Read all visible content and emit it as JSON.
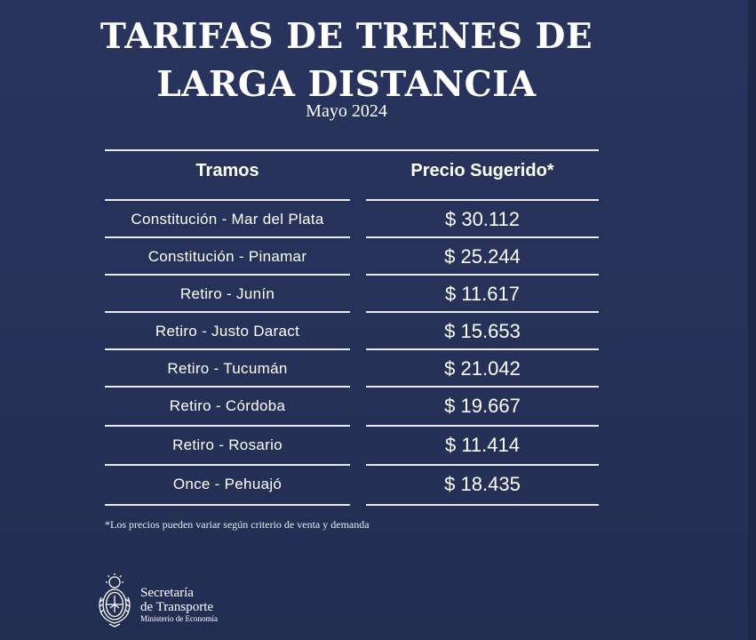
{
  "header": {
    "title_line1": "TARIFAS DE TRENES DE",
    "title_line2": "LARGA DISTANCIA",
    "subtitle": "Mayo 2024"
  },
  "table": {
    "columns": [
      "Tramos",
      "Precio Sugerido*"
    ],
    "rows": [
      {
        "route": "Constitución - Mar del Plata",
        "price": "$ 30.112"
      },
      {
        "route": "Constitución - Pinamar",
        "price": "$ 25.244"
      },
      {
        "route": "Retiro - Junín",
        "price": "$ 11.617"
      },
      {
        "route": "Retiro - Justo Daract",
        "price": "$ 15.653"
      },
      {
        "route": "Retiro - Tucumán",
        "price": "$ 21.042"
      },
      {
        "route": "Retiro - Córdoba",
        "price": "$ 19.667"
      },
      {
        "route": "Retiro - Rosario",
        "price": "$ 11.414"
      },
      {
        "route": "Once - Pehuajó",
        "price": "$ 18.435"
      }
    ]
  },
  "footnote": "*Los precios pueden variar según criterio de venta y demanda",
  "footer": {
    "logo_icon": "argentina-coat-of-arms-icon",
    "org_line1": "Secretaría",
    "org_line2": "de Transporte",
    "org_line3": "Ministerio de Economía"
  },
  "colors": {
    "background": "#26325a",
    "text": "#ffffff",
    "rule": "#e8ebf3"
  }
}
